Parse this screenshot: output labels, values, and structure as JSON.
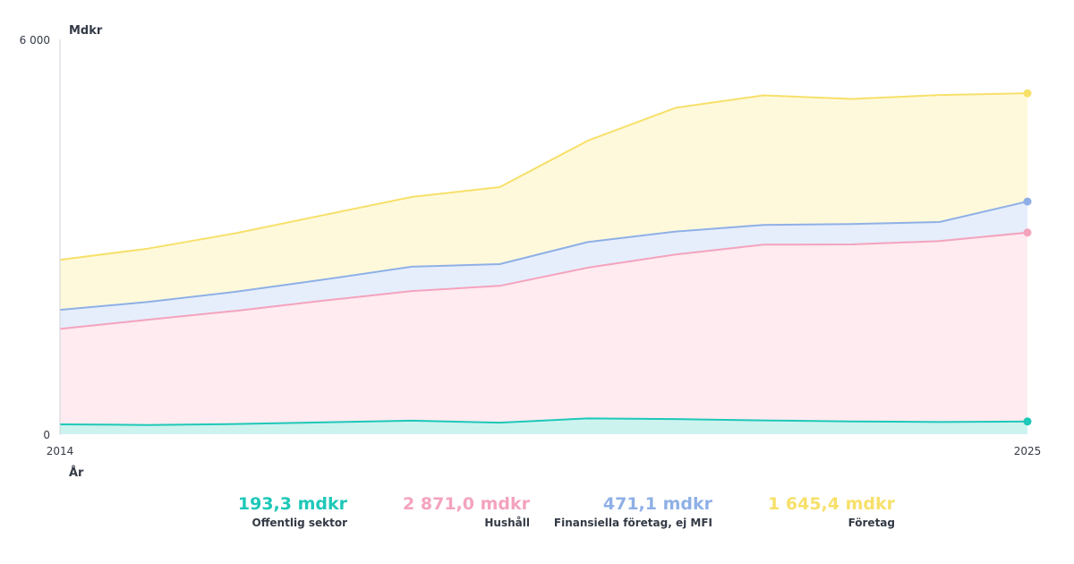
{
  "chart_data": {
    "type": "area",
    "stacked": true,
    "y_unit_label": "Mdkr",
    "x_unit_label": "År",
    "x": [
      2014,
      2015,
      2016,
      2017,
      2018,
      2019,
      2020,
      2021,
      2022,
      2023,
      2024,
      2025
    ],
    "x_tick_labels": [
      "2014",
      "2025"
    ],
    "y_tick_labels": [
      "0",
      "6 000"
    ],
    "ylim": [
      0,
      6000
    ],
    "grid": false,
    "series": [
      {
        "name": "Offentlig sektor",
        "color": "#1ec8b8",
        "fill": "#cdf3ef",
        "values": [
          150,
          140,
          155,
          180,
          205,
          175,
          240,
          230,
          210,
          195,
          185,
          193.3
        ],
        "legend_value": "193,3 mdkr"
      },
      {
        "name": "Hushåll",
        "color": "#f4a3bd",
        "fill": "#ffebf0",
        "values": [
          1450,
          1600,
          1720,
          1850,
          1970,
          2080,
          2290,
          2500,
          2670,
          2690,
          2750,
          2871.0
        ],
        "legend_value": "2 871,0 mdkr"
      },
      {
        "name": "Finansiella företag, ej MFI",
        "color": "#8fb0e6",
        "fill": "#e6eefc",
        "values": [
          290,
          270,
          290,
          320,
          370,
          330,
          390,
          350,
          300,
          310,
          290,
          471.1
        ],
        "legend_value": "471,1 mdkr"
      },
      {
        "name": "Företag",
        "color": "#f7e06a",
        "fill": "#fff9dc",
        "values": [
          760,
          810,
          890,
          980,
          1060,
          1170,
          1540,
          1880,
          1970,
          1900,
          1930,
          1645.4
        ],
        "legend_value": "1 645,4 mdkr"
      }
    ]
  }
}
